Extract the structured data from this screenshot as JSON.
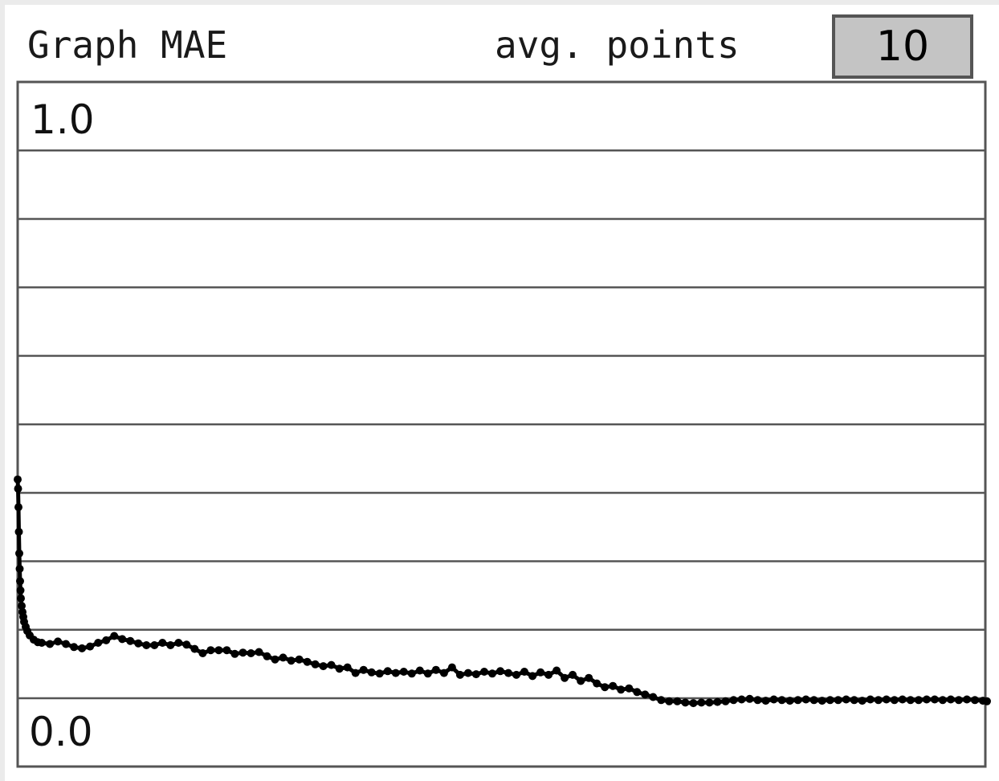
{
  "header": {
    "title": "Graph MAE",
    "avg_label": "avg. points",
    "avg_value": "10"
  },
  "chart_data": {
    "type": "line",
    "title": "Graph MAE",
    "xlabel": "",
    "ylabel": "",
    "ylim": [
      0.0,
      1.0
    ],
    "ytick_labels": [
      "1.0",
      "0.0"
    ],
    "grid": true,
    "grid_lines": 9,
    "marker": "circle",
    "line_color": "#000000",
    "grid_color": "#555555",
    "x": [
      0,
      0.5,
      1,
      1.5,
      2,
      2.5,
      3,
      3.5,
      4,
      5,
      6,
      7,
      8,
      10,
      12,
      15,
      20,
      25,
      30,
      40,
      50,
      60,
      70,
      80,
      90,
      100,
      110,
      120,
      130,
      140,
      150,
      160,
      170,
      180,
      190,
      200,
      210,
      220,
      230,
      240,
      250,
      260,
      270,
      280,
      290,
      300,
      310,
      320,
      330,
      340,
      350,
      360,
      370,
      380,
      390,
      400,
      410,
      420,
      430,
      440,
      450,
      460,
      470,
      480,
      490,
      500,
      510,
      520,
      530,
      540,
      550,
      560,
      570,
      580,
      590,
      600,
      610,
      620,
      630,
      640,
      650,
      660,
      670,
      680,
      690,
      700,
      710,
      720,
      730,
      740,
      750,
      760,
      770,
      780,
      790,
      800,
      810,
      820,
      830,
      840,
      850,
      860,
      870,
      880,
      890,
      900,
      910,
      920,
      930,
      940,
      950,
      960,
      970,
      980,
      990,
      1000,
      1010,
      1020,
      1030,
      1040,
      1050,
      1060,
      1070,
      1080,
      1090,
      1100,
      1110,
      1120,
      1130,
      1140,
      1150,
      1160,
      1170,
      1180,
      1190,
      1200,
      1205
    ],
    "series": [
      {
        "values": [
          0.355,
          0.34,
          0.31,
          0.27,
          0.235,
          0.21,
          0.19,
          0.175,
          0.162,
          0.15,
          0.14,
          0.132,
          0.124,
          0.116,
          0.109,
          0.102,
          0.095,
          0.091,
          0.09,
          0.088,
          0.092,
          0.088,
          0.083,
          0.081,
          0.084,
          0.09,
          0.094,
          0.101,
          0.096,
          0.093,
          0.089,
          0.086,
          0.086,
          0.09,
          0.086,
          0.09,
          0.087,
          0.08,
          0.073,
          0.078,
          0.078,
          0.078,
          0.072,
          0.074,
          0.073,
          0.075,
          0.068,
          0.063,
          0.066,
          0.061,
          0.063,
          0.059,
          0.055,
          0.052,
          0.054,
          0.048,
          0.05,
          0.041,
          0.046,
          0.042,
          0.04,
          0.044,
          0.041,
          0.043,
          0.04,
          0.045,
          0.04,
          0.046,
          0.041,
          0.05,
          0.038,
          0.041,
          0.039,
          0.043,
          0.04,
          0.044,
          0.041,
          0.038,
          0.043,
          0.036,
          0.042,
          0.038,
          0.045,
          0.033,
          0.038,
          0.028,
          0.033,
          0.024,
          0.018,
          0.02,
          0.014,
          0.016,
          0.01,
          0.006,
          0.002,
          -0.003,
          -0.005,
          -0.005,
          -0.007,
          -0.008,
          -0.007,
          -0.007,
          -0.006,
          -0.005,
          -0.003,
          -0.002,
          -0.001,
          -0.003,
          -0.004,
          -0.002,
          -0.003,
          -0.004,
          -0.003,
          -0.002,
          -0.003,
          -0.004,
          -0.003,
          -0.003,
          -0.002,
          -0.003,
          -0.004,
          -0.002,
          -0.003,
          -0.002,
          -0.003,
          -0.002,
          -0.003,
          -0.003,
          -0.002,
          -0.002,
          -0.003,
          -0.002,
          -0.003,
          -0.002,
          -0.003,
          -0.004,
          -0.005
        ]
      }
    ]
  }
}
